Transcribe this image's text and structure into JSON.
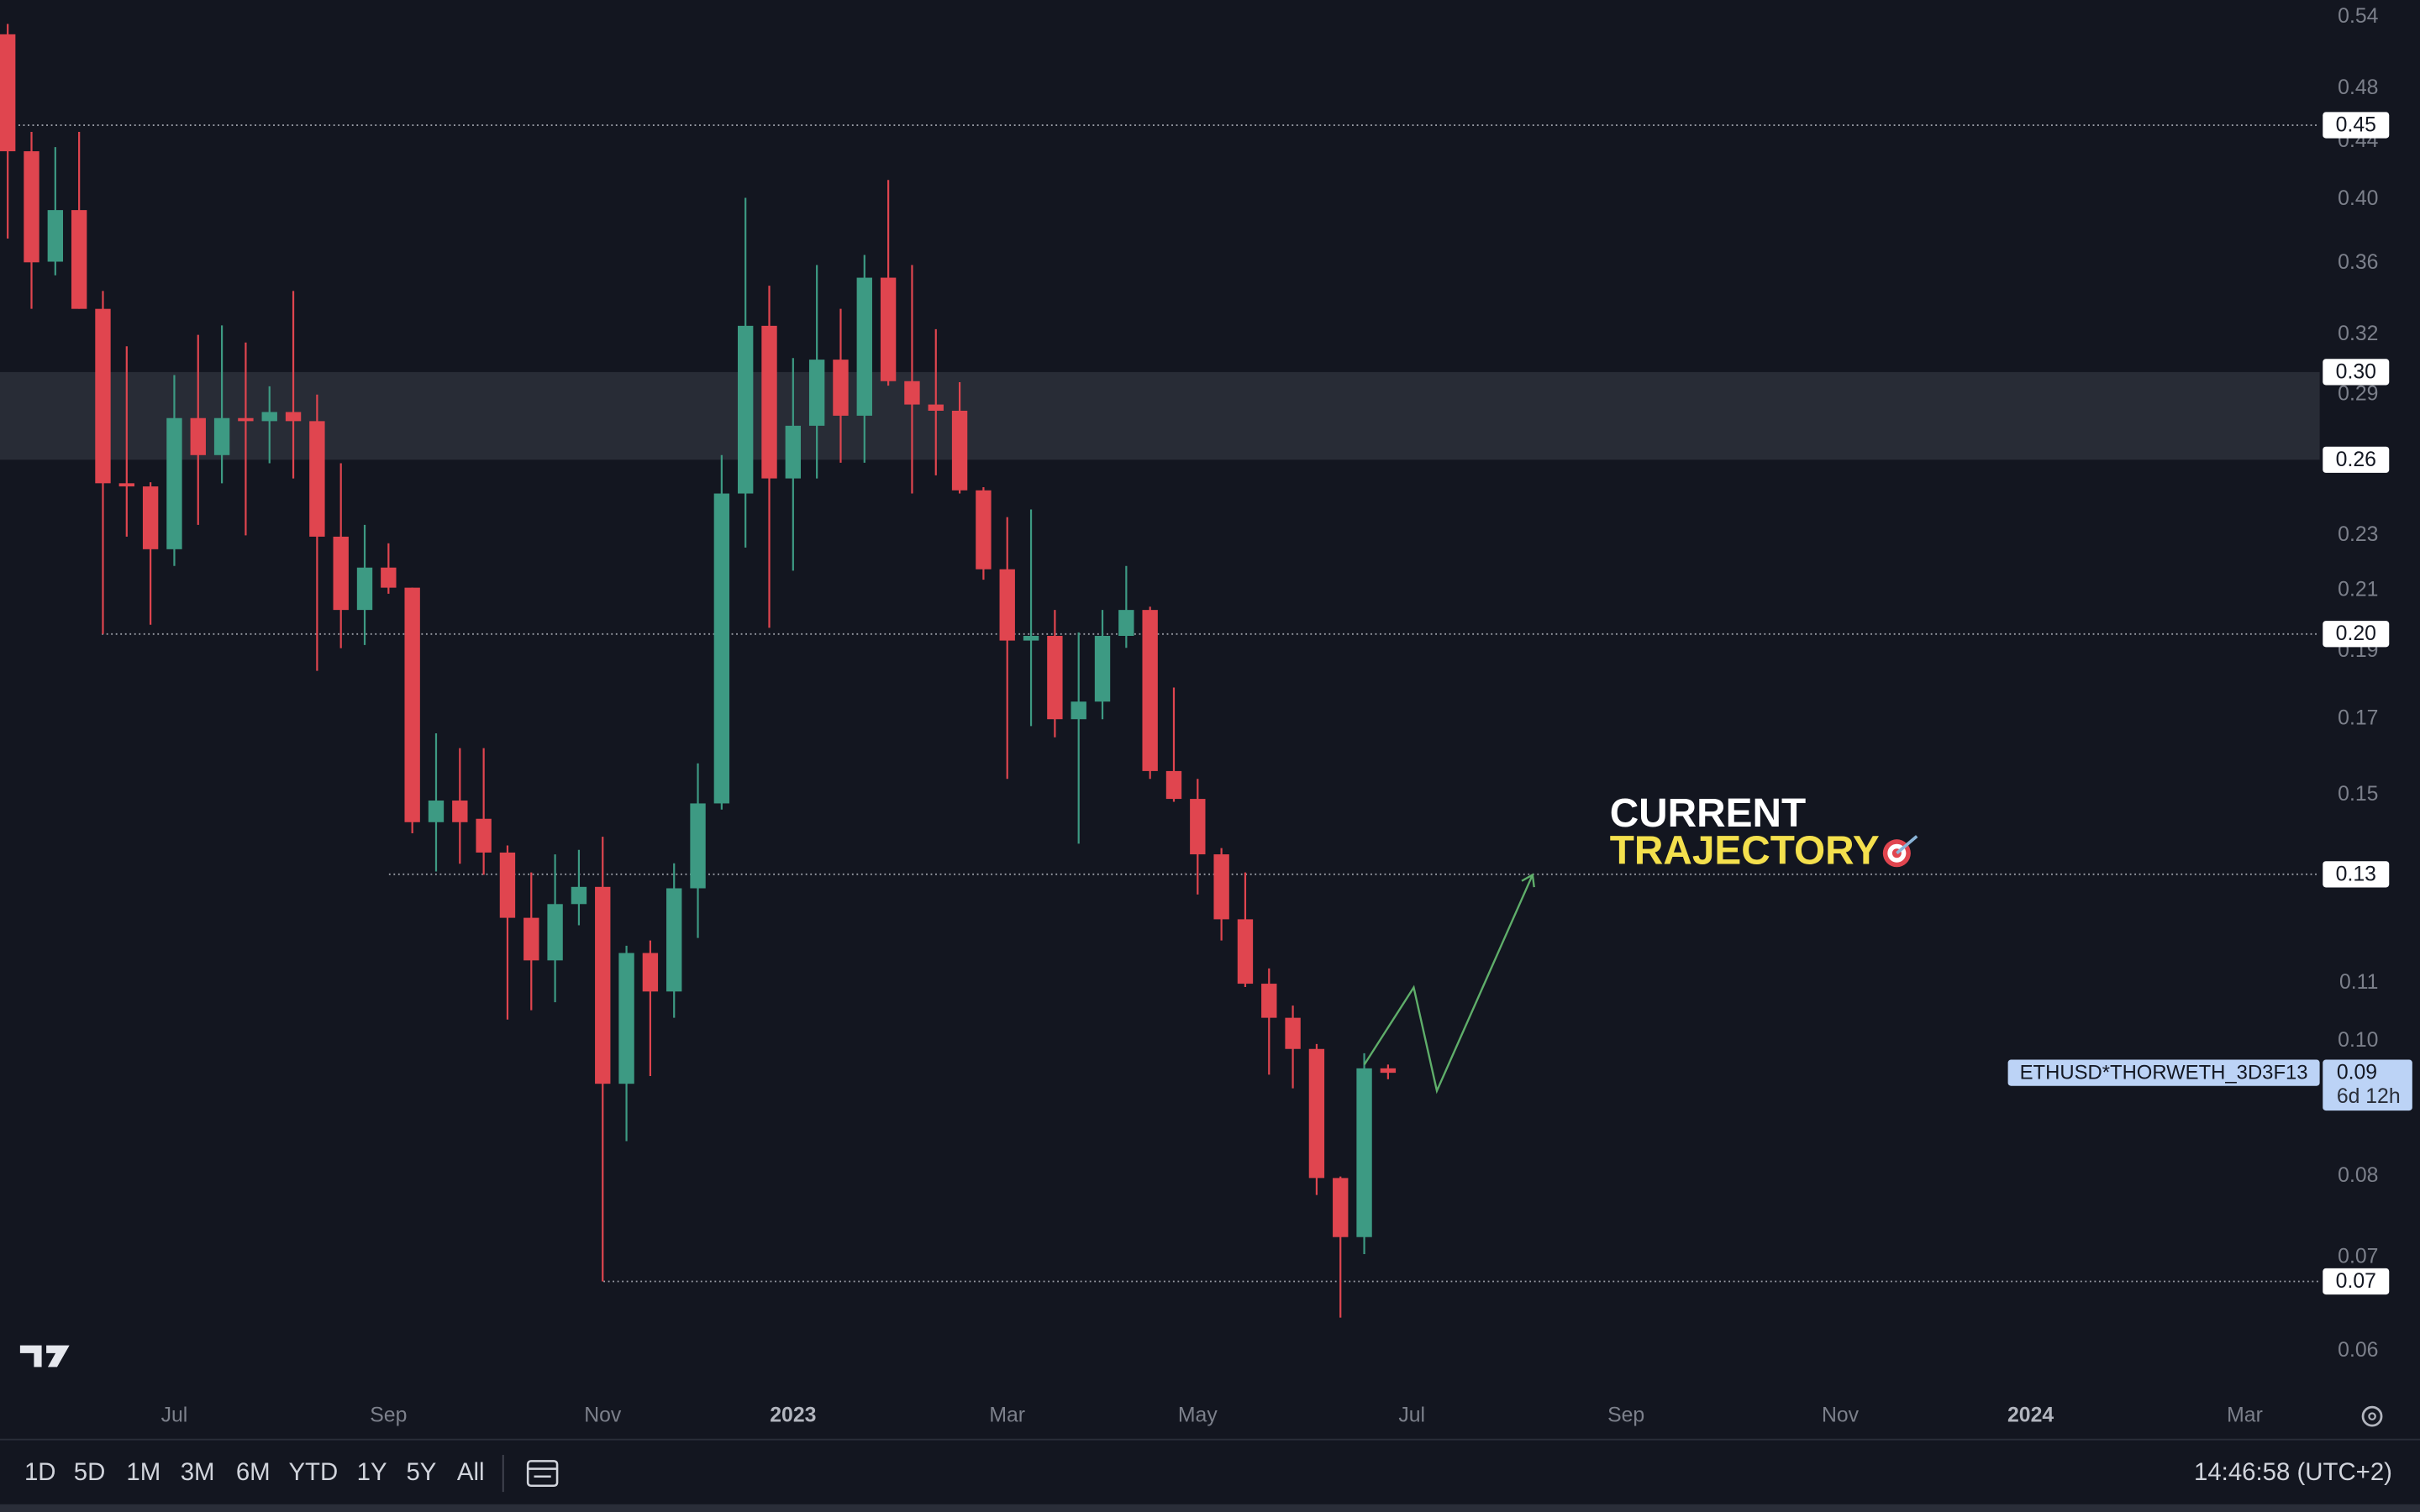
{
  "chart_data": {
    "type": "candlestick",
    "log_scale": true,
    "up_color": "#3d9a83",
    "down_color": "#e0454f",
    "categories": [
      null,
      null,
      null,
      null,
      null,
      null,
      null,
      "Jul",
      null,
      null,
      null,
      null,
      null,
      null,
      null,
      null,
      "Sep",
      null,
      null,
      null,
      null,
      null,
      null,
      null,
      null,
      "Nov",
      null,
      null,
      null,
      null,
      null,
      null,
      null,
      "2023",
      null,
      null,
      null,
      null,
      null,
      null,
      null,
      null,
      "Mar",
      null,
      null,
      null,
      null,
      null,
      null,
      null,
      "May",
      null,
      null,
      null,
      null,
      null,
      null,
      null,
      null,
      "Jul",
      null,
      null,
      null,
      null,
      null,
      null,
      null,
      null,
      "Sep",
      null,
      null,
      null,
      null,
      null,
      null,
      null,
      null,
      "Nov",
      null,
      null,
      null,
      null,
      null,
      null,
      null,
      "2024",
      null,
      null,
      null,
      null,
      null,
      null,
      null,
      null,
      "Mar"
    ],
    "open": [
      0.525,
      0.433,
      0.361,
      0.393,
      0.334,
      0.2506,
      0.2493,
      0.2248,
      0.279,
      0.2625,
      0.279,
      0.2776,
      0.2818,
      0.2776,
      0.2295,
      0.2034,
      0.2181,
      0.211,
      0.1434,
      0.1486,
      0.1442,
      0.1364,
      0.1225,
      0.1142,
      0.1253,
      0.1289,
      0.0932,
      0.1156,
      0.1085,
      0.1286,
      0.1479,
      0.2464,
      0.3248,
      0.2526,
      0.2755,
      0.3072,
      0.2801,
      0.3516,
      0.2965,
      0.2853,
      0.2824,
      0.2477,
      0.2175,
      0.1934,
      0.1949,
      0.1699,
      0.1749,
      0.1949,
      0.2034,
      0.156,
      0.149,
      0.136,
      0.1222,
      0.1099,
      0.1039,
      0.0987,
      0.0798,
      0.0724,
      0.0956,
      null,
      null,
      null,
      null,
      null,
      null,
      null,
      null,
      null,
      null,
      null,
      null,
      null,
      null,
      null,
      null,
      null,
      null,
      null,
      null,
      null,
      null,
      null,
      null,
      null,
      null,
      null,
      null,
      null,
      null,
      null,
      null,
      null,
      null,
      null,
      null
    ],
    "high": [
      0.534,
      0.447,
      0.436,
      0.447,
      0.344,
      0.314,
      0.251,
      0.2995,
      0.32,
      0.325,
      0.316,
      0.294,
      0.344,
      0.29,
      0.259,
      0.234,
      0.227,
      0.211,
      0.166,
      0.162,
      0.162,
      0.138,
      0.132,
      0.136,
      0.137,
      0.14,
      0.117,
      0.118,
      0.134,
      0.158,
      0.2625,
      0.401,
      0.347,
      0.308,
      0.359,
      0.334,
      0.365,
      0.413,
      0.359,
      0.323,
      0.296,
      0.249,
      0.237,
      0.24,
      0.2034,
      0.196,
      0.2034,
      0.2187,
      0.2045,
      0.179,
      0.154,
      0.1374,
      0.132,
      0.1127,
      0.106,
      0.0995,
      0.08,
      0.098,
      0.0962,
      null,
      null,
      null,
      null,
      null,
      null,
      null,
      null,
      null,
      null,
      null,
      null,
      null,
      null,
      null,
      null,
      null,
      null,
      null,
      null,
      null,
      null,
      null,
      null,
      null,
      null,
      null,
      null,
      null,
      null,
      null,
      null,
      null,
      null,
      null,
      null
    ],
    "low": [
      0.375,
      0.334,
      0.353,
      0.334,
      0.1955,
      0.2295,
      0.1985,
      0.2187,
      0.234,
      0.2506,
      0.23,
      0.259,
      0.2526,
      0.184,
      0.191,
      0.192,
      0.2089,
      0.1408,
      0.1322,
      0.1339,
      0.1315,
      0.1036,
      0.1052,
      0.1066,
      0.121,
      0.0673,
      0.0848,
      0.0944,
      0.1039,
      0.1185,
      0.1464,
      0.2254,
      0.1975,
      0.217,
      0.2526,
      0.2592,
      0.2592,
      0.2943,
      0.2464,
      0.2539,
      0.2464,
      0.2138,
      0.154,
      0.168,
      0.1649,
      0.1384,
      0.1699,
      0.1911,
      0.154,
      0.1483,
      0.1273,
      0.118,
      0.1093,
      0.0946,
      0.0925,
      0.0776,
      0.0634,
      0.0704,
      0.0939,
      null,
      null,
      null,
      null,
      null,
      null,
      null,
      null,
      null,
      null,
      null,
      null,
      null,
      null,
      null,
      null,
      null,
      null,
      null,
      null,
      null,
      null,
      null,
      null,
      null,
      null,
      null,
      null,
      null,
      null,
      null,
      null,
      null,
      null,
      null,
      null
    ],
    "close": [
      0.433,
      0.3606,
      0.393,
      0.334,
      0.2506,
      0.2493,
      0.2248,
      0.279,
      0.2625,
      0.279,
      0.2776,
      0.2818,
      0.2776,
      0.2295,
      0.2034,
      0.2181,
      0.211,
      0.1434,
      0.1486,
      0.1434,
      0.1364,
      0.1225,
      0.1142,
      0.1253,
      0.1289,
      0.0932,
      0.1156,
      0.1085,
      0.1286,
      0.1479,
      0.2464,
      0.3248,
      0.2526,
      0.2755,
      0.3072,
      0.2801,
      0.3516,
      0.2965,
      0.2853,
      0.2824,
      0.2477,
      0.2175,
      0.1934,
      0.1949,
      0.1699,
      0.1749,
      0.1949,
      0.2034,
      0.156,
      0.149,
      0.136,
      0.1222,
      0.1099,
      0.1039,
      0.0987,
      0.0798,
      0.0724,
      0.0956,
      0.0949,
      null,
      null,
      null,
      null,
      null,
      null,
      null,
      null,
      null,
      null,
      null,
      null,
      null,
      null,
      null,
      null,
      null,
      null,
      null,
      null,
      null,
      null,
      null,
      null,
      null,
      null,
      null,
      null,
      null,
      null,
      null,
      null,
      null,
      null,
      null,
      null
    ],
    "ylim": [
      0.0557,
      0.5555
    ],
    "yticks": [
      0.54,
      0.48,
      0.44,
      {
        "value": 0.4,
        "label": "0.40"
      },
      0.36,
      0.32,
      0.29,
      0.23,
      0.21,
      0.19,
      0.17,
      0.15,
      0.11,
      {
        "value": 0.1,
        "label": "0.10"
      },
      0.08,
      0.07,
      0.06
    ],
    "levels": [
      {
        "value": 0.452,
        "label": "0.45"
      },
      {
        "value": 0.301,
        "label": "0.30"
      },
      {
        "value": 0.2605,
        "label": "0.26"
      },
      {
        "value": 0.1955,
        "label": "0.20"
      },
      {
        "value": 0.1316,
        "label": "0.13"
      },
      {
        "value": 0.0673,
        "label": "0.07"
      }
    ],
    "last_price": {
      "value": 0.0949,
      "label": "0.09"
    },
    "countdown": "6d 12h",
    "symbol": "ETHUSD*THORWETH_3D3F13",
    "annotation": [
      "CURRENT",
      "TRAJECTORY"
    ]
  },
  "toolbar": {
    "ranges": [
      "1D",
      "5D",
      "1M",
      "3M",
      "6M",
      "YTD",
      "1Y",
      "5Y",
      "All"
    ],
    "clock": "14:46:58 (UTC+2)"
  }
}
